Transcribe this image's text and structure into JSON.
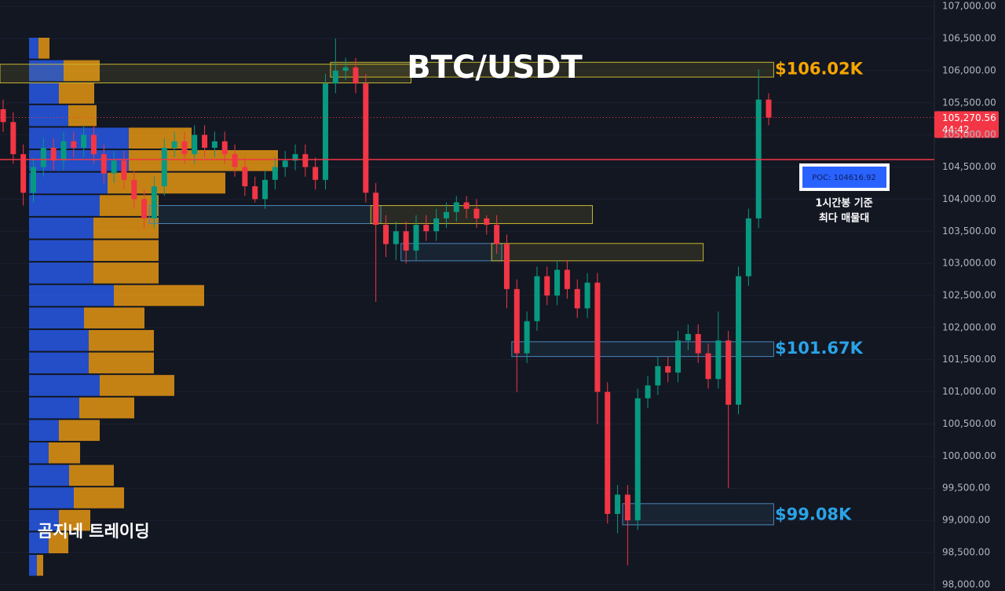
{
  "chart_data": {
    "type": "candlestick",
    "title": "BTC/USDT",
    "watermark": "곰지네 트레이딩",
    "up_color": "#089981",
    "down_color": "#f23645",
    "ylim": [
      97900,
      107100
    ],
    "yticks": [
      {
        "value": 107000,
        "label": "107,000.00"
      },
      {
        "value": 106500,
        "label": "106,500.00"
      },
      {
        "value": 106000,
        "label": "106,000.00"
      },
      {
        "value": 105500,
        "label": "105,500.00"
      },
      {
        "value": 105000,
        "label": "105,000.00"
      },
      {
        "value": 104500,
        "label": "104,500.00"
      },
      {
        "value": 104000,
        "label": "104,000.00"
      },
      {
        "value": 103500,
        "label": "103,500.00"
      },
      {
        "value": 103000,
        "label": "103,000.00"
      },
      {
        "value": 102500,
        "label": "102,500.00"
      },
      {
        "value": 102000,
        "label": "102,000.00"
      },
      {
        "value": 101500,
        "label": "101,500.00"
      },
      {
        "value": 101000,
        "label": "101,000.00"
      },
      {
        "value": 100500,
        "label": "100,500.00"
      },
      {
        "value": 100000,
        "label": "100,000.00"
      },
      {
        "value": 99500,
        "label": "99,500.00"
      },
      {
        "value": 99000,
        "label": "99,000.00"
      },
      {
        "value": 98500,
        "label": "98,500.00"
      },
      {
        "value": 98000,
        "label": "98,000.00"
      }
    ],
    "grid": true,
    "open": [
      105400,
      105200,
      104700,
      104100,
      104500,
      104800,
      104600,
      104900,
      104800,
      105000,
      104700,
      104400,
      104600,
      104300,
      104000,
      103700,
      104200,
      104800,
      104900,
      104700,
      105000,
      104800,
      104900,
      104700,
      104500,
      104200,
      104000,
      104300,
      104500,
      104600,
      104700,
      104500,
      104300,
      105800,
      106000,
      106050,
      105800,
      104100,
      103600,
      103300,
      103500,
      103200,
      103600,
      103500,
      103700,
      103800,
      103950,
      103850,
      103700,
      103600,
      103300,
      102600,
      101600,
      102100,
      102800,
      102500,
      102900,
      102600,
      102300,
      102700,
      101000,
      99100,
      99400,
      99000,
      100900,
      101100,
      101400,
      101300,
      101800,
      101900,
      101600,
      101200,
      101800,
      100800,
      102800,
      103700,
      105550
    ],
    "high": [
      105550,
      105350,
      104850,
      104650,
      104950,
      104950,
      105050,
      105050,
      105150,
      105150,
      104850,
      104750,
      104750,
      104450,
      104150,
      104350,
      104950,
      105050,
      105050,
      105150,
      105150,
      105050,
      105050,
      104850,
      104650,
      104350,
      104450,
      104650,
      104750,
      104850,
      104850,
      104650,
      105950,
      106500,
      106200,
      106200,
      105950,
      104250,
      103750,
      103650,
      103650,
      103750,
      103750,
      103850,
      103950,
      104050,
      104050,
      104000,
      103750,
      103750,
      103450,
      102750,
      102250,
      102950,
      102950,
      103050,
      103050,
      102750,
      102850,
      102850,
      101150,
      99550,
      99550,
      101050,
      101250,
      101550,
      101550,
      101950,
      102050,
      102050,
      101750,
      102250,
      101950,
      102950,
      103850,
      106020,
      105650
    ],
    "low": [
      105050,
      104550,
      103900,
      103950,
      104350,
      104450,
      104450,
      104650,
      104650,
      104550,
      104250,
      104250,
      104150,
      103850,
      103550,
      103550,
      104050,
      104650,
      104550,
      104550,
      104650,
      104650,
      104550,
      104350,
      104050,
      103950,
      103850,
      104150,
      104350,
      104450,
      104350,
      104150,
      104150,
      105650,
      105850,
      105650,
      103950,
      102400,
      103100,
      103050,
      103000,
      103050,
      103350,
      103350,
      103550,
      103650,
      103700,
      103550,
      103450,
      103150,
      102300,
      101000,
      101450,
      101950,
      102350,
      102350,
      102450,
      102150,
      102150,
      100500,
      98950,
      98800,
      98300,
      98850,
      100750,
      100950,
      101150,
      101150,
      101650,
      101450,
      101050,
      101050,
      99500,
      100650,
      102650,
      103550,
      105150
    ],
    "close": [
      105200,
      104700,
      104100,
      104500,
      104800,
      104600,
      104900,
      104800,
      105000,
      104700,
      104400,
      104600,
      104300,
      104000,
      103700,
      104200,
      104800,
      104900,
      104700,
      105000,
      104800,
      104900,
      104700,
      104500,
      104200,
      104000,
      104300,
      104500,
      104600,
      104700,
      104500,
      104300,
      105800,
      106000,
      106050,
      105800,
      104100,
      103600,
      103300,
      103500,
      103200,
      103600,
      103500,
      103700,
      103800,
      103950,
      103850,
      103700,
      103600,
      103300,
      102600,
      101600,
      102100,
      102800,
      102500,
      102900,
      102600,
      102300,
      102700,
      101000,
      99100,
      99400,
      99000,
      100900,
      101100,
      101400,
      101300,
      101800,
      101900,
      101600,
      101200,
      101800,
      100800,
      102800,
      103700,
      105550,
      105270
    ],
    "volume_profile": {
      "levels": [
        106350,
        106000,
        105650,
        105300,
        104950,
        104600,
        104250,
        103900,
        103550,
        103200,
        102850,
        102500,
        102150,
        101800,
        101450,
        101100,
        100750,
        100400,
        100050,
        99700,
        99350,
        99000,
        98650,
        98300
      ],
      "buy": [
        12,
        44,
        38,
        50,
        127,
        127,
        100,
        90,
        82,
        82,
        82,
        108,
        70,
        76,
        76,
        90,
        64,
        38,
        25,
        51,
        57,
        38,
        25,
        10
      ],
      "sell": [
        14,
        46,
        45,
        36,
        80,
        190,
        150,
        75,
        83,
        83,
        83,
        115,
        77,
        83,
        83,
        95,
        70,
        52,
        40,
        57,
        64,
        40,
        25,
        8
      ],
      "buy_color": "#2962ff",
      "sell_color": "#f29d11"
    },
    "zones": [
      {
        "start": 0,
        "end": 40,
        "low": 105810,
        "high": 106100,
        "color": "#c9b72f"
      },
      {
        "start": 33,
        "end": 76,
        "low": 105900,
        "high": 106130,
        "color": "#c9b72f"
      },
      {
        "start": 15,
        "end": 37,
        "low": 103620,
        "high": 103900,
        "color": "#4a86b8"
      },
      {
        "start": 37,
        "end": 58,
        "low": 103620,
        "high": 103900,
        "color": "#c9b72f"
      },
      {
        "start": 40,
        "end": 49,
        "low": 103040,
        "high": 103310,
        "color": "#4a86b8"
      },
      {
        "start": 49,
        "end": 69,
        "low": 103040,
        "high": 103310,
        "color": "#c9b72f"
      },
      {
        "start": 51,
        "end": 76,
        "low": 101550,
        "high": 101780,
        "color": "#4a86b8"
      },
      {
        "start": 62,
        "end": 76,
        "low": 98930,
        "high": 99260,
        "color": "#4a86b8"
      }
    ],
    "poc": {
      "value": 104616.92,
      "label": "POC: 104616.92",
      "color": "#f23645",
      "note": [
        "1시간봉 기준",
        "최다 매물대"
      ]
    },
    "last_price": {
      "value": 105270.56,
      "label": "105,270.56",
      "countdown": "44:42",
      "color": "#f23645"
    },
    "levels": [
      {
        "value": 106020,
        "label": "$106.02K",
        "color": "#f7a600"
      },
      {
        "value": 101670,
        "label": "$101.67K",
        "color": "#2aa3e8"
      },
      {
        "value": 99080,
        "label": "$99.08K",
        "color": "#2aa3e8"
      }
    ]
  }
}
